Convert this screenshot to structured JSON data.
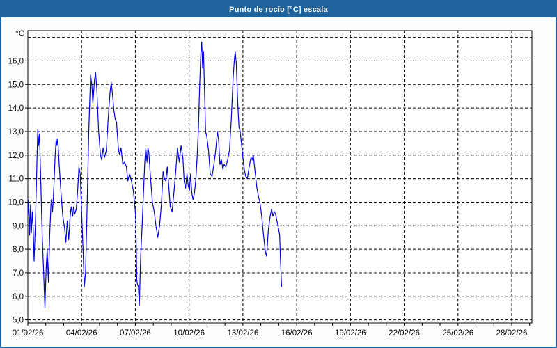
{
  "window": {
    "title": "Punto de rocío [°C] escala"
  },
  "colors": {
    "titlebar": "#1e639b",
    "window_border": "#1e639b",
    "plot_background": "#fffffe",
    "grid": "#000000",
    "line": "#0000dd"
  },
  "chart_data": {
    "type": "line",
    "title": "Punto de rocío [°C] escala",
    "xlabel": "",
    "ylabel": "°C",
    "y_axis": {
      "unit_label": "°C",
      "min": 5.0,
      "max": 17.4,
      "tick_step": 1.0,
      "tick_labels": [
        "5,0",
        "6,0",
        "7,0",
        "8,0",
        "9,0",
        "10,0",
        "11,0",
        "12,0",
        "13,0",
        "14,0",
        "15,0",
        "16,0"
      ],
      "top_gridline_value": 17.0,
      "grid": "dashed"
    },
    "x_axis": {
      "start_label": "01/02/26",
      "end_day": 28.2,
      "label_step_days": 3,
      "minor_tick_days": 1,
      "tick_labels": [
        "01/02/26",
        "04/02/26",
        "07/02/26",
        "10/02/26",
        "13/02/26",
        "16/02/26",
        "19/02/26",
        "22/02/26",
        "25/02/26",
        "28/02/26"
      ],
      "grid": "dashed"
    },
    "legend": "none",
    "series": [
      {
        "name": "Punto de rocío [°C]",
        "color": "#0000dd",
        "points": [
          [
            0.0,
            9.4
          ],
          [
            0.05,
            10.1
          ],
          [
            0.1,
            8.6
          ],
          [
            0.15,
            9.9
          ],
          [
            0.2,
            8.7
          ],
          [
            0.25,
            9.6
          ],
          [
            0.3,
            8.9
          ],
          [
            0.35,
            7.5
          ],
          [
            0.42,
            9.0
          ],
          [
            0.5,
            11.5
          ],
          [
            0.55,
            13.1
          ],
          [
            0.6,
            12.4
          ],
          [
            0.65,
            12.9
          ],
          [
            0.72,
            11.0
          ],
          [
            0.8,
            8.6
          ],
          [
            0.88,
            7.0
          ],
          [
            0.95,
            5.5
          ],
          [
            1.02,
            7.2
          ],
          [
            1.08,
            8.0
          ],
          [
            1.15,
            6.6
          ],
          [
            1.22,
            8.6
          ],
          [
            1.3,
            10.1
          ],
          [
            1.38,
            9.6
          ],
          [
            1.45,
            10.6
          ],
          [
            1.52,
            11.9
          ],
          [
            1.58,
            12.7
          ],
          [
            1.62,
            12.4
          ],
          [
            1.67,
            12.7
          ],
          [
            1.75,
            11.6
          ],
          [
            1.85,
            10.4
          ],
          [
            1.95,
            9.4
          ],
          [
            2.05,
            8.9
          ],
          [
            2.12,
            8.3
          ],
          [
            2.2,
            9.2
          ],
          [
            2.28,
            8.4
          ],
          [
            2.35,
            9.3
          ],
          [
            2.42,
            9.8
          ],
          [
            2.5,
            9.4
          ],
          [
            2.55,
            9.8
          ],
          [
            2.62,
            9.5
          ],
          [
            2.7,
            9.7
          ],
          [
            2.78,
            10.5
          ],
          [
            2.85,
            11.5
          ],
          [
            2.92,
            11.2
          ],
          [
            3.0,
            9.6
          ],
          [
            3.08,
            8.0
          ],
          [
            3.15,
            6.4
          ],
          [
            3.22,
            7.0
          ],
          [
            3.3,
            9.5
          ],
          [
            3.4,
            13.0
          ],
          [
            3.5,
            15.4
          ],
          [
            3.57,
            15.0
          ],
          [
            3.63,
            14.2
          ],
          [
            3.72,
            15.2
          ],
          [
            3.78,
            15.5
          ],
          [
            3.85,
            14.8
          ],
          [
            3.95,
            13.0
          ],
          [
            4.05,
            12.0
          ],
          [
            4.12,
            11.8
          ],
          [
            4.2,
            12.3
          ],
          [
            4.28,
            11.9
          ],
          [
            4.38,
            12.2
          ],
          [
            4.48,
            13.5
          ],
          [
            4.58,
            14.6
          ],
          [
            4.65,
            15.1
          ],
          [
            4.72,
            14.6
          ],
          [
            4.8,
            13.9
          ],
          [
            4.88,
            13.5
          ],
          [
            4.95,
            13.4
          ],
          [
            5.05,
            12.3
          ],
          [
            5.12,
            12.0
          ],
          [
            5.2,
            12.3
          ],
          [
            5.3,
            11.6
          ],
          [
            5.4,
            11.7
          ],
          [
            5.5,
            11.5
          ],
          [
            5.58,
            10.9
          ],
          [
            5.68,
            11.2
          ],
          [
            5.78,
            10.9
          ],
          [
            5.88,
            10.5
          ],
          [
            5.95,
            10.0
          ],
          [
            6.02,
            9.4
          ],
          [
            6.08,
            6.7
          ],
          [
            6.12,
            6.5
          ],
          [
            6.17,
            6.4
          ],
          [
            6.22,
            5.6
          ],
          [
            6.3,
            7.8
          ],
          [
            6.38,
            9.0
          ],
          [
            6.45,
            10.3
          ],
          [
            6.52,
            11.6
          ],
          [
            6.58,
            12.3
          ],
          [
            6.65,
            11.7
          ],
          [
            6.7,
            12.3
          ],
          [
            6.75,
            12.1
          ],
          [
            6.85,
            11.0
          ],
          [
            6.95,
            10.0
          ],
          [
            7.05,
            9.6
          ],
          [
            7.15,
            9.0
          ],
          [
            7.25,
            8.5
          ],
          [
            7.35,
            9.0
          ],
          [
            7.45,
            9.9
          ],
          [
            7.55,
            11.3
          ],
          [
            7.62,
            11.0
          ],
          [
            7.7,
            10.9
          ],
          [
            7.78,
            11.5
          ],
          [
            7.85,
            10.8
          ],
          [
            7.95,
            9.8
          ],
          [
            8.05,
            9.6
          ],
          [
            8.15,
            10.4
          ],
          [
            8.25,
            11.3
          ],
          [
            8.35,
            12.3
          ],
          [
            8.45,
            11.7
          ],
          [
            8.55,
            12.4
          ],
          [
            8.65,
            11.9
          ],
          [
            8.72,
            10.9
          ],
          [
            8.8,
            10.6
          ],
          [
            8.88,
            11.2
          ],
          [
            8.95,
            10.7
          ],
          [
            9.02,
            10.5
          ],
          [
            9.08,
            11.2
          ],
          [
            9.15,
            10.4
          ],
          [
            9.22,
            10.1
          ],
          [
            9.3,
            10.4
          ],
          [
            9.38,
            11.0
          ],
          [
            9.45,
            12.0
          ],
          [
            9.52,
            13.2
          ],
          [
            9.58,
            14.8
          ],
          [
            9.65,
            16.3
          ],
          [
            9.7,
            16.8
          ],
          [
            9.75,
            15.7
          ],
          [
            9.8,
            16.4
          ],
          [
            9.85,
            15.0
          ],
          [
            9.92,
            13.0
          ],
          [
            9.98,
            12.8
          ],
          [
            10.08,
            12.2
          ],
          [
            10.18,
            11.2
          ],
          [
            10.28,
            11.1
          ],
          [
            10.38,
            11.6
          ],
          [
            10.48,
            12.2
          ],
          [
            10.58,
            13.0
          ],
          [
            10.65,
            12.6
          ],
          [
            10.72,
            11.6
          ],
          [
            10.8,
            11.8
          ],
          [
            10.88,
            11.4
          ],
          [
            10.95,
            11.6
          ],
          [
            11.05,
            11.5
          ],
          [
            11.15,
            11.8
          ],
          [
            11.25,
            12.2
          ],
          [
            11.35,
            13.5
          ],
          [
            11.45,
            15.2
          ],
          [
            11.52,
            16.0
          ],
          [
            11.57,
            16.4
          ],
          [
            11.63,
            15.9
          ],
          [
            11.7,
            14.4
          ],
          [
            11.78,
            13.2
          ],
          [
            11.85,
            13.0
          ],
          [
            11.92,
            12.5
          ],
          [
            12.0,
            11.9
          ],
          [
            12.08,
            11.4
          ],
          [
            12.15,
            11.1
          ],
          [
            12.25,
            11.0
          ],
          [
            12.35,
            11.5
          ],
          [
            12.45,
            11.9
          ],
          [
            12.52,
            11.8
          ],
          [
            12.58,
            12.0
          ],
          [
            12.68,
            11.3
          ],
          [
            12.78,
            10.6
          ],
          [
            12.88,
            10.2
          ],
          [
            12.95,
            10.0
          ],
          [
            13.05,
            9.4
          ],
          [
            13.15,
            8.6
          ],
          [
            13.25,
            7.9
          ],
          [
            13.32,
            7.7
          ],
          [
            13.42,
            8.8
          ],
          [
            13.52,
            9.4
          ],
          [
            13.6,
            9.7
          ],
          [
            13.68,
            9.4
          ],
          [
            13.75,
            9.6
          ],
          [
            13.82,
            9.5
          ],
          [
            13.9,
            9.2
          ],
          [
            13.98,
            8.9
          ],
          [
            14.05,
            8.6
          ],
          [
            14.1,
            7.5
          ],
          [
            14.16,
            6.4
          ]
        ]
      }
    ]
  }
}
